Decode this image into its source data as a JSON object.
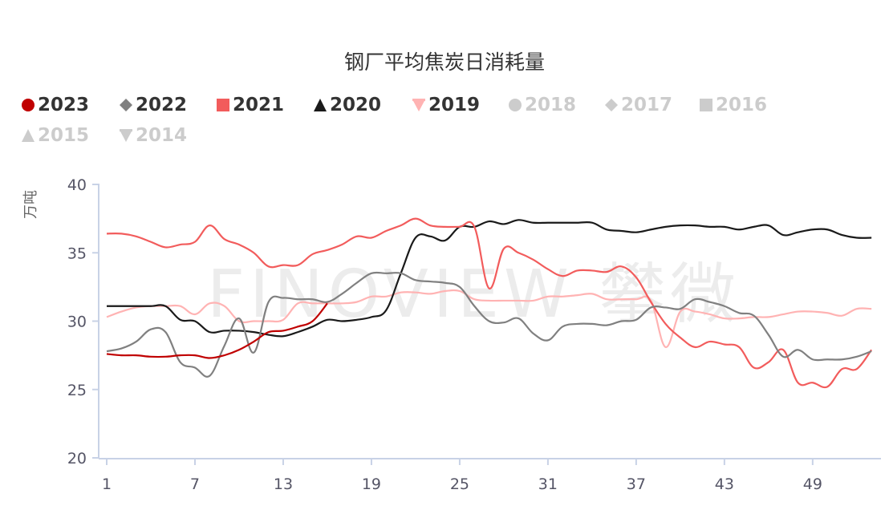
{
  "title": "钢厂平均焦炭日消耗量",
  "watermark": "FINOVIEW 攀微",
  "legend": [
    {
      "label": "2023",
      "symbol": "circle",
      "color": "#c00000",
      "active": true
    },
    {
      "label": "2022",
      "symbol": "diamond",
      "color": "#808080",
      "active": true
    },
    {
      "label": "2021",
      "symbol": "square",
      "color": "#f25c5c",
      "active": true
    },
    {
      "label": "2020",
      "symbol": "triangle",
      "color": "#1a1a1a",
      "active": true
    },
    {
      "label": "2019",
      "symbol": "triangle-down",
      "color": "#ffb3b3",
      "active": true
    },
    {
      "label": "2018",
      "symbol": "circle",
      "color": "#cccccc",
      "active": false
    },
    {
      "label": "2017",
      "symbol": "diamond",
      "color": "#cccccc",
      "active": false
    },
    {
      "label": "2016",
      "symbol": "square",
      "color": "#cccccc",
      "active": false
    },
    {
      "label": "2015",
      "symbol": "triangle",
      "color": "#cccccc",
      "active": false
    },
    {
      "label": "2014",
      "symbol": "triangle-down",
      "color": "#cccccc",
      "active": false
    }
  ],
  "chart_data": {
    "type": "line",
    "title": "钢厂平均焦炭日消耗量",
    "xlabel": "",
    "ylabel": "万吨",
    "ylim": [
      20,
      40
    ],
    "yticks": [
      20,
      25,
      30,
      35,
      40
    ],
    "xticks": [
      1,
      7,
      13,
      19,
      25,
      31,
      37,
      43,
      49
    ],
    "xlim": [
      1,
      53
    ],
    "grid": false,
    "legend_position": "top-left",
    "series": [
      {
        "name": "2023",
        "color": "#c00000",
        "x": [
          1,
          2,
          3,
          4,
          5,
          6,
          7,
          8,
          9,
          10,
          11,
          12,
          13,
          14,
          15,
          16
        ],
        "values": [
          27.6,
          27.5,
          27.5,
          27.4,
          27.4,
          27.5,
          27.5,
          27.3,
          27.5,
          27.9,
          28.5,
          29.2,
          29.3,
          29.6,
          30.0,
          31.3
        ]
      },
      {
        "name": "2022",
        "color": "#808080",
        "x": [
          1,
          2,
          3,
          4,
          5,
          6,
          7,
          8,
          9,
          10,
          11,
          12,
          13,
          14,
          15,
          16,
          17,
          18,
          19,
          20,
          21,
          22,
          23,
          24,
          25,
          26,
          27,
          28,
          29,
          30,
          31,
          32,
          33,
          34,
          35,
          36,
          37,
          38,
          39,
          40,
          41,
          42,
          43,
          44,
          45,
          46,
          47,
          48,
          49,
          50,
          51,
          52,
          53
        ],
        "values": [
          27.8,
          28.0,
          28.5,
          29.4,
          29.2,
          27.0,
          26.6,
          26.0,
          28.2,
          30.2,
          27.7,
          31.4,
          31.7,
          31.6,
          31.6,
          31.4,
          32.0,
          32.8,
          33.5,
          33.5,
          33.5,
          33.0,
          32.9,
          32.8,
          32.5,
          31.1,
          30.0,
          29.9,
          30.2,
          29.1,
          28.6,
          29.6,
          29.8,
          29.8,
          29.7,
          30.0,
          30.1,
          31.0,
          31.0,
          30.9,
          31.6,
          31.4,
          31.1,
          30.6,
          30.4,
          29.0,
          27.4,
          27.9,
          27.2,
          27.2,
          27.2,
          27.4,
          27.8
        ]
      },
      {
        "name": "2021",
        "color": "#f25c5c",
        "x": [
          1,
          2,
          3,
          4,
          5,
          6,
          7,
          8,
          9,
          10,
          11,
          12,
          13,
          14,
          15,
          16,
          17,
          18,
          19,
          20,
          21,
          22,
          23,
          24,
          25,
          26,
          27,
          28,
          29,
          30,
          31,
          32,
          33,
          34,
          35,
          36,
          37,
          38,
          39,
          40,
          41,
          42,
          43,
          44,
          45,
          46,
          47,
          48,
          49,
          50,
          51,
          52,
          53
        ],
        "values": [
          36.4,
          36.4,
          36.2,
          35.8,
          35.4,
          35.6,
          35.8,
          37.0,
          36.0,
          35.6,
          35.0,
          34.0,
          34.1,
          34.1,
          34.9,
          35.2,
          35.6,
          36.2,
          36.1,
          36.6,
          37.0,
          37.5,
          37.0,
          36.9,
          36.9,
          36.9,
          32.4,
          35.3,
          35.0,
          34.5,
          33.8,
          33.3,
          33.7,
          33.7,
          33.6,
          34.0,
          33.2,
          31.4,
          29.8,
          28.8,
          28.1,
          28.5,
          28.3,
          28.1,
          26.6,
          27.0,
          27.9,
          25.5,
          25.5,
          25.2,
          26.5,
          26.5,
          27.9
        ]
      },
      {
        "name": "2020",
        "color": "#1a1a1a",
        "x": [
          1,
          2,
          3,
          4,
          5,
          6,
          7,
          8,
          9,
          10,
          11,
          12,
          13,
          14,
          15,
          16,
          17,
          18,
          19,
          20,
          21,
          22,
          23,
          24,
          25,
          26,
          27,
          28,
          29,
          30,
          31,
          32,
          33,
          34,
          35,
          36,
          37,
          38,
          39,
          40,
          41,
          42,
          43,
          44,
          45,
          46,
          47,
          48,
          49,
          50,
          51,
          52,
          53
        ],
        "values": [
          31.1,
          31.1,
          31.1,
          31.1,
          31.1,
          30.1,
          30.0,
          29.2,
          29.3,
          29.3,
          29.2,
          29.0,
          28.9,
          29.2,
          29.6,
          30.1,
          30.0,
          30.1,
          30.3,
          30.8,
          33.5,
          36.1,
          36.2,
          35.9,
          36.9,
          36.9,
          37.3,
          37.1,
          37.4,
          37.2,
          37.2,
          37.2,
          37.2,
          37.2,
          36.7,
          36.6,
          36.5,
          36.7,
          36.9,
          37.0,
          37.0,
          36.9,
          36.9,
          36.7,
          36.9,
          37.0,
          36.3,
          36.5,
          36.7,
          36.7,
          36.3,
          36.1,
          36.1
        ]
      },
      {
        "name": "2019",
        "color": "#ffb3b3",
        "x": [
          1,
          2,
          3,
          4,
          5,
          6,
          7,
          8,
          9,
          10,
          11,
          12,
          13,
          14,
          15,
          16,
          17,
          18,
          19,
          20,
          21,
          22,
          23,
          24,
          25,
          26,
          27,
          28,
          29,
          30,
          31,
          32,
          33,
          34,
          35,
          36,
          37,
          38,
          39,
          40,
          41,
          42,
          43,
          44,
          45,
          46,
          47,
          48,
          49,
          50,
          51,
          52,
          53
        ],
        "values": [
          30.3,
          30.7,
          31.0,
          31.1,
          31.1,
          31.1,
          30.5,
          31.3,
          31.1,
          30.0,
          30.0,
          30.0,
          30.1,
          31.3,
          31.3,
          31.3,
          31.3,
          31.4,
          31.8,
          31.8,
          32.1,
          32.1,
          32.0,
          32.2,
          32.2,
          31.6,
          31.5,
          31.5,
          31.5,
          31.5,
          31.8,
          31.8,
          31.9,
          32.0,
          31.6,
          31.6,
          31.6,
          31.5,
          28.1,
          30.7,
          30.7,
          30.5,
          30.2,
          30.2,
          30.3,
          30.3,
          30.5,
          30.7,
          30.7,
          30.6,
          30.4,
          30.9,
          30.9
        ]
      }
    ]
  }
}
